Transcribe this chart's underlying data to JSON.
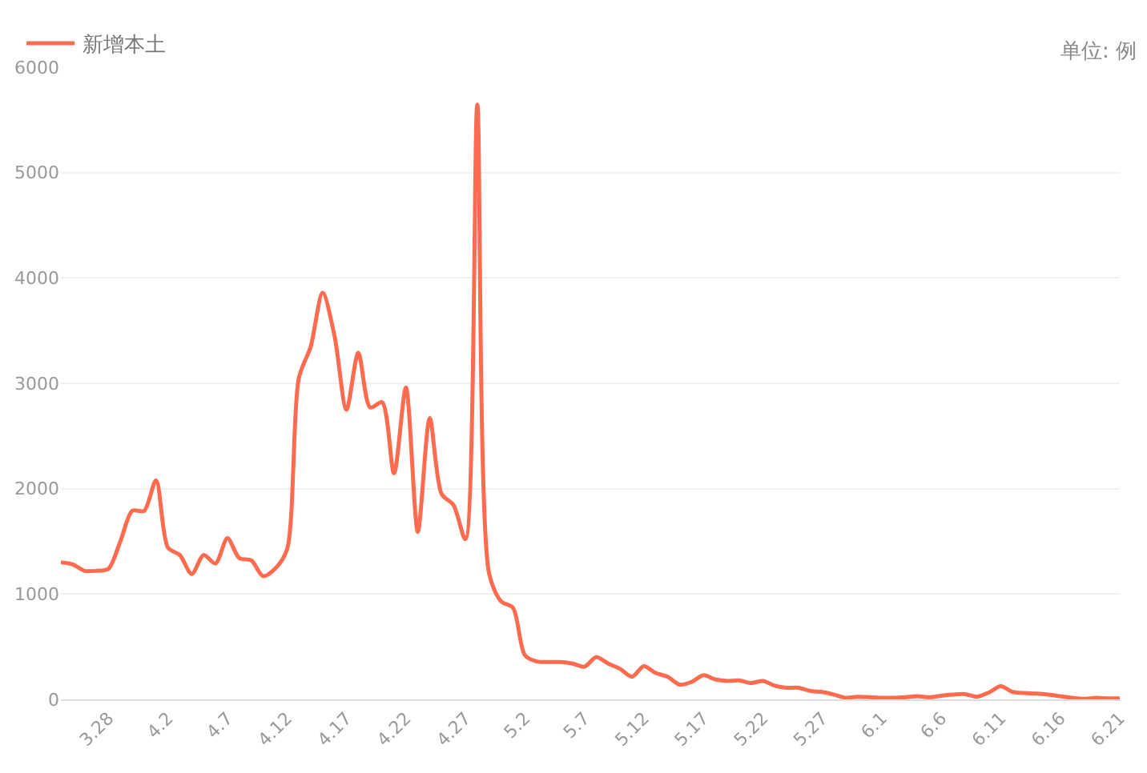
{
  "chart_data": {
    "type": "line",
    "categories": [
      null,
      null,
      null,
      null,
      "3.28",
      null,
      null,
      null,
      null,
      "4.2",
      null,
      null,
      null,
      null,
      "4.7",
      null,
      null,
      null,
      null,
      "4.12",
      null,
      null,
      null,
      null,
      "4.17",
      null,
      null,
      null,
      null,
      "4.22",
      null,
      null,
      null,
      null,
      "4.27",
      null,
      null,
      null,
      null,
      "5.2",
      null,
      null,
      null,
      null,
      "5.7",
      null,
      null,
      null,
      null,
      "5.12",
      null,
      null,
      null,
      null,
      "5.17",
      null,
      null,
      null,
      null,
      "5.22",
      null,
      null,
      null,
      null,
      "5.27",
      null,
      null,
      null,
      null,
      "6.1",
      null,
      null,
      null,
      null,
      "6.6",
      null,
      null,
      null,
      null,
      "6.11",
      null,
      null,
      null,
      null,
      "6.16",
      null,
      null,
      null,
      null,
      "6.21"
    ],
    "series": [
      {
        "name": "新增本土",
        "color": "#fe6b4f",
        "values": [
          1300,
          1280,
          1220,
          1220,
          1240,
          1500,
          1790,
          1790,
          2080,
          1440,
          1370,
          1190,
          1370,
          1290,
          1530,
          1340,
          1320,
          1170,
          1240,
          1420,
          3050,
          3350,
          3860,
          3450,
          2750,
          3290,
          2770,
          2820,
          2145,
          2960,
          1590,
          2670,
          1950,
          1845,
          1520,
          5645,
          1190,
          930,
          870,
          420,
          360,
          355,
          355,
          340,
          310,
          400,
          340,
          290,
          215,
          315,
          250,
          215,
          140,
          165,
          230,
          190,
          175,
          180,
          155,
          175,
          130,
          110,
          110,
          80,
          70,
          45,
          15,
          25,
          20,
          15,
          15,
          20,
          30,
          20,
          35,
          45,
          50,
          25,
          65,
          125,
          70,
          60,
          55,
          45,
          30,
          15,
          5,
          15,
          10,
          10
        ]
      }
    ],
    "ylim": [
      0,
      6000
    ],
    "yticks": [
      0,
      1000,
      2000,
      3000,
      4000,
      5000,
      6000
    ],
    "grid": "y",
    "legend": "top left",
    "line_style": "solid",
    "annotations": [
      "单位: 例"
    ]
  }
}
